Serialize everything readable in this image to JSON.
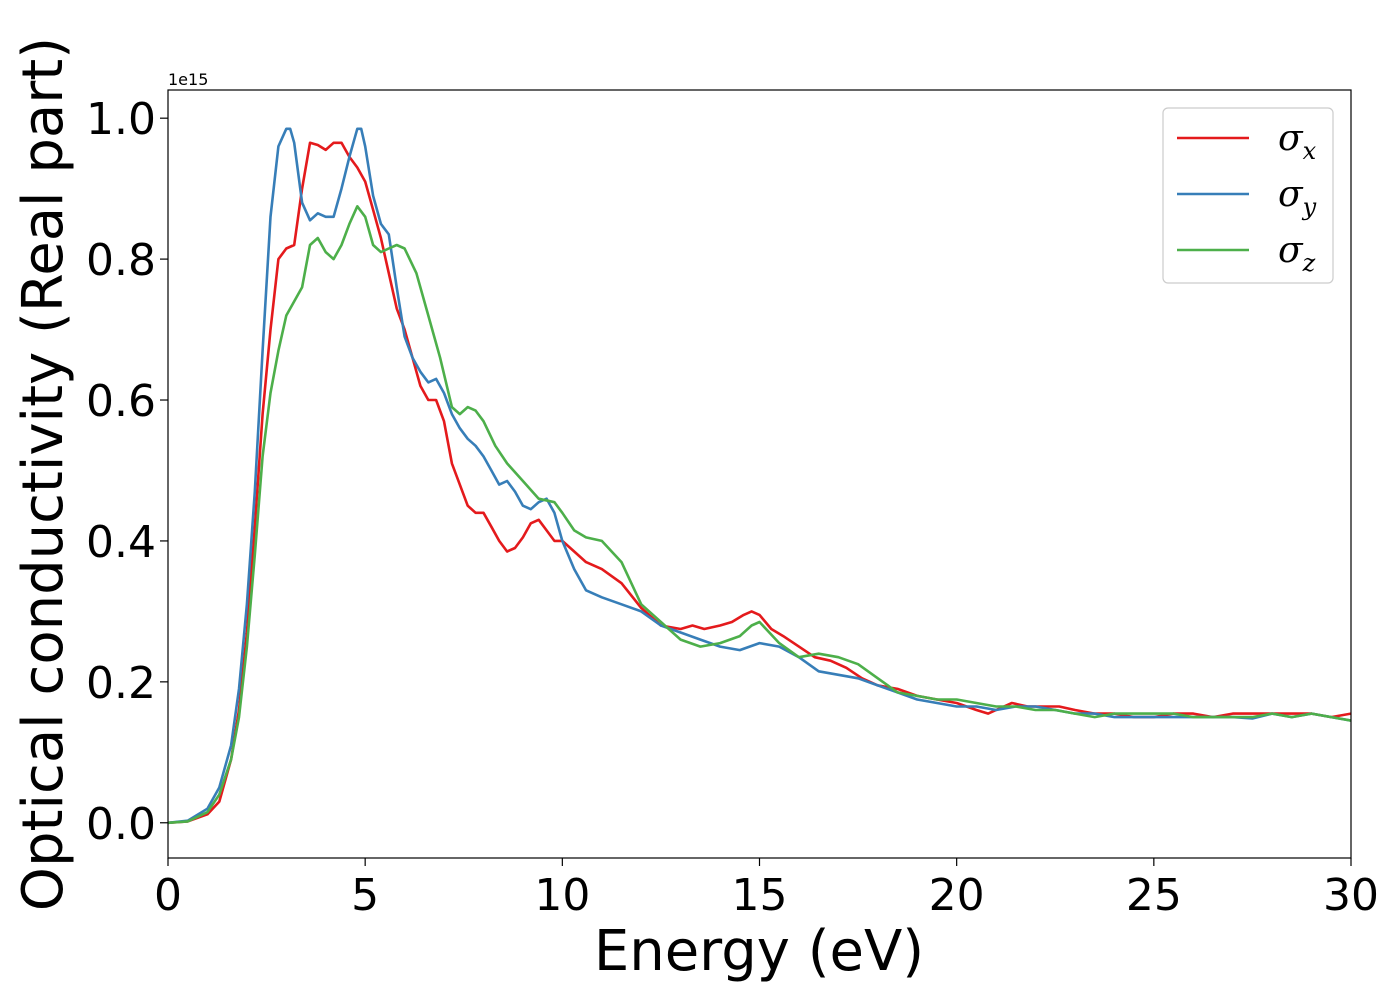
{
  "chart_data": {
    "type": "line",
    "title": "",
    "xlabel": "Energy (eV)",
    "ylabel": "Optical conductivity (Real part)",
    "y_offset_label": "1e15",
    "xlim": [
      0,
      30
    ],
    "ylim": [
      -0.05,
      1.04
    ],
    "x_ticks": [
      0,
      5,
      10,
      15,
      20,
      25,
      30
    ],
    "x_tick_labels": [
      "0",
      "5",
      "10",
      "15",
      "20",
      "25",
      "30"
    ],
    "y_ticks": [
      0.0,
      0.2,
      0.4,
      0.6,
      0.8,
      1.0
    ],
    "y_tick_labels": [
      "0.0",
      "0.2",
      "0.4",
      "0.6",
      "0.8",
      "1.0"
    ],
    "grid": false,
    "legend_position": "top-right",
    "series": [
      {
        "name": "σx",
        "symbol": "σ",
        "subscript": "x",
        "color": "#e41a1c",
        "x": [
          0,
          0.5,
          1.0,
          1.3,
          1.6,
          1.8,
          2.0,
          2.2,
          2.4,
          2.6,
          2.8,
          3.0,
          3.2,
          3.4,
          3.6,
          3.8,
          4.0,
          4.2,
          4.4,
          4.6,
          4.8,
          5.0,
          5.2,
          5.4,
          5.6,
          5.8,
          6.0,
          6.2,
          6.4,
          6.6,
          6.8,
          7.0,
          7.2,
          7.4,
          7.6,
          7.8,
          8.0,
          8.2,
          8.4,
          8.6,
          8.8,
          9.0,
          9.2,
          9.4,
          9.6,
          9.8,
          10.0,
          10.3,
          10.6,
          11.0,
          11.5,
          12.0,
          12.5,
          13.0,
          13.3,
          13.6,
          14.0,
          14.3,
          14.6,
          14.8,
          15.0,
          15.3,
          15.6,
          16.0,
          16.4,
          16.8,
          17.2,
          17.6,
          18.0,
          18.5,
          19.0,
          19.5,
          20.0,
          20.5,
          20.8,
          21.0,
          21.4,
          21.8,
          22.2,
          22.6,
          23.0,
          23.5,
          24.0,
          24.5,
          25.0,
          25.5,
          26.0,
          26.5,
          27.0,
          27.5,
          28.0,
          28.5,
          29.0,
          29.5,
          30.0
        ],
        "y": [
          0.0,
          0.002,
          0.012,
          0.03,
          0.09,
          0.16,
          0.27,
          0.42,
          0.58,
          0.7,
          0.8,
          0.815,
          0.82,
          0.9,
          0.965,
          0.962,
          0.955,
          0.965,
          0.965,
          0.945,
          0.93,
          0.91,
          0.87,
          0.83,
          0.78,
          0.73,
          0.7,
          0.66,
          0.62,
          0.6,
          0.6,
          0.57,
          0.51,
          0.48,
          0.45,
          0.44,
          0.44,
          0.42,
          0.4,
          0.385,
          0.39,
          0.405,
          0.425,
          0.43,
          0.415,
          0.4,
          0.4,
          0.385,
          0.37,
          0.36,
          0.34,
          0.305,
          0.28,
          0.275,
          0.28,
          0.275,
          0.28,
          0.285,
          0.295,
          0.3,
          0.295,
          0.275,
          0.265,
          0.25,
          0.235,
          0.23,
          0.22,
          0.205,
          0.195,
          0.19,
          0.18,
          0.175,
          0.17,
          0.16,
          0.155,
          0.16,
          0.17,
          0.165,
          0.165,
          0.165,
          0.16,
          0.155,
          0.155,
          0.15,
          0.15,
          0.155,
          0.155,
          0.15,
          0.155,
          0.155,
          0.155,
          0.155,
          0.155,
          0.15,
          0.155
        ]
      },
      {
        "name": "σy",
        "symbol": "σ",
        "subscript": "y",
        "color": "#377eb8",
        "x": [
          0,
          0.5,
          1.0,
          1.3,
          1.6,
          1.8,
          2.0,
          2.2,
          2.4,
          2.6,
          2.8,
          3.0,
          3.1,
          3.2,
          3.4,
          3.6,
          3.8,
          4.0,
          4.2,
          4.4,
          4.6,
          4.8,
          4.9,
          5.0,
          5.2,
          5.4,
          5.6,
          5.8,
          6.0,
          6.2,
          6.4,
          6.6,
          6.8,
          7.0,
          7.2,
          7.4,
          7.6,
          7.8,
          8.0,
          8.2,
          8.4,
          8.6,
          8.8,
          9.0,
          9.2,
          9.4,
          9.6,
          9.8,
          10.0,
          10.3,
          10.6,
          11.0,
          11.5,
          12.0,
          12.5,
          13.0,
          13.5,
          14.0,
          14.5,
          15.0,
          15.5,
          16.0,
          16.5,
          17.0,
          17.5,
          18.0,
          18.5,
          19.0,
          19.5,
          20.0,
          20.5,
          21.0,
          21.5,
          22.0,
          22.5,
          23.0,
          23.5,
          24.0,
          24.5,
          25.0,
          25.5,
          26.0,
          26.5,
          27.0,
          27.5,
          28.0,
          28.5,
          29.0,
          29.5,
          30.0
        ],
        "y": [
          0.0,
          0.003,
          0.02,
          0.05,
          0.11,
          0.19,
          0.31,
          0.47,
          0.67,
          0.86,
          0.96,
          0.985,
          0.985,
          0.965,
          0.88,
          0.855,
          0.865,
          0.86,
          0.86,
          0.9,
          0.945,
          0.985,
          0.985,
          0.96,
          0.89,
          0.85,
          0.835,
          0.76,
          0.69,
          0.66,
          0.64,
          0.625,
          0.63,
          0.61,
          0.58,
          0.56,
          0.545,
          0.535,
          0.52,
          0.5,
          0.48,
          0.485,
          0.47,
          0.45,
          0.445,
          0.455,
          0.46,
          0.44,
          0.4,
          0.36,
          0.33,
          0.32,
          0.31,
          0.3,
          0.28,
          0.27,
          0.26,
          0.25,
          0.245,
          0.255,
          0.25,
          0.235,
          0.215,
          0.21,
          0.205,
          0.195,
          0.185,
          0.175,
          0.17,
          0.165,
          0.165,
          0.16,
          0.165,
          0.165,
          0.16,
          0.155,
          0.155,
          0.15,
          0.15,
          0.15,
          0.15,
          0.15,
          0.15,
          0.15,
          0.148,
          0.155,
          0.15,
          0.155,
          0.15,
          0.145
        ]
      },
      {
        "name": "σz",
        "symbol": "σ",
        "subscript": "z",
        "color": "#4daf4a",
        "x": [
          0,
          0.5,
          1.0,
          1.3,
          1.6,
          1.8,
          2.0,
          2.2,
          2.4,
          2.6,
          2.8,
          3.0,
          3.2,
          3.4,
          3.6,
          3.8,
          4.0,
          4.2,
          4.4,
          4.6,
          4.8,
          5.0,
          5.2,
          5.4,
          5.6,
          5.8,
          6.0,
          6.3,
          6.6,
          6.9,
          7.2,
          7.4,
          7.6,
          7.8,
          8.0,
          8.3,
          8.6,
          9.0,
          9.4,
          9.8,
          10.0,
          10.3,
          10.6,
          11.0,
          11.5,
          12.0,
          12.5,
          13.0,
          13.5,
          14.0,
          14.5,
          14.8,
          15.0,
          15.5,
          16.0,
          16.5,
          17.0,
          17.5,
          18.0,
          18.5,
          19.0,
          19.5,
          20.0,
          20.5,
          21.0,
          21.5,
          22.0,
          22.5,
          23.0,
          23.5,
          24.0,
          24.5,
          25.0,
          25.5,
          26.0,
          26.5,
          27.0,
          27.5,
          28.0,
          28.5,
          29.0,
          29.5,
          30.0
        ],
        "y": [
          0.0,
          0.002,
          0.015,
          0.04,
          0.09,
          0.15,
          0.25,
          0.38,
          0.52,
          0.61,
          0.67,
          0.72,
          0.74,
          0.76,
          0.82,
          0.83,
          0.81,
          0.8,
          0.82,
          0.85,
          0.875,
          0.86,
          0.82,
          0.81,
          0.815,
          0.82,
          0.815,
          0.78,
          0.72,
          0.66,
          0.59,
          0.58,
          0.59,
          0.585,
          0.57,
          0.535,
          0.51,
          0.485,
          0.46,
          0.455,
          0.44,
          0.415,
          0.405,
          0.4,
          0.37,
          0.31,
          0.285,
          0.26,
          0.25,
          0.255,
          0.265,
          0.28,
          0.285,
          0.255,
          0.235,
          0.24,
          0.235,
          0.225,
          0.205,
          0.185,
          0.18,
          0.175,
          0.175,
          0.17,
          0.165,
          0.165,
          0.16,
          0.16,
          0.155,
          0.15,
          0.155,
          0.155,
          0.155,
          0.155,
          0.15,
          0.15,
          0.15,
          0.15,
          0.155,
          0.15,
          0.155,
          0.15,
          0.145
        ]
      }
    ]
  }
}
